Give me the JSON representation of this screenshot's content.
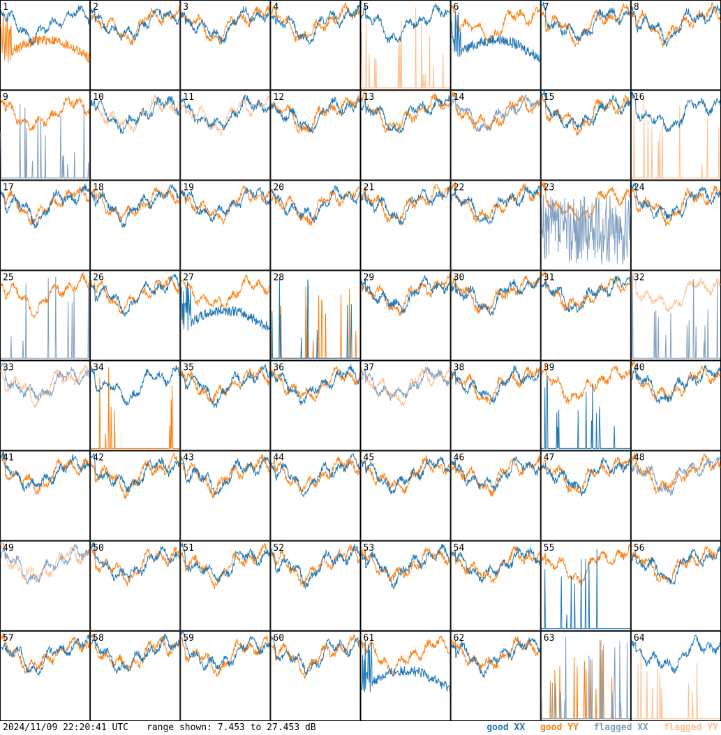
{
  "footer": {
    "timestamp": "2024/11/09 22:20:41 UTC",
    "range": "range shown: 7.453 to 27.453 dB"
  },
  "legend": [
    {
      "label": "good XX",
      "color": "#1f77b4"
    },
    {
      "label": "good YY",
      "color": "#ff7f0e"
    },
    {
      "label": "flagged XX",
      "color": "#7f9fbf"
    },
    {
      "label": "flagged YY",
      "color": "#ffbf8f"
    }
  ],
  "chart_data": {
    "type": "line",
    "xlabel": "",
    "ylabel": "",
    "ylim": [
      7.453,
      27.453
    ],
    "grid": {
      "rows": 8,
      "cols": 8
    },
    "panels": [
      {
        "id": "1",
        "xx": "good",
        "yy": "good",
        "xx_shape": "normal",
        "yy_shape": "hump"
      },
      {
        "id": "2",
        "xx": "good",
        "yy": "good",
        "xx_shape": "normal",
        "yy_shape": "normal"
      },
      {
        "id": "3",
        "xx": "good",
        "yy": "good",
        "xx_shape": "normal",
        "yy_shape": "normal"
      },
      {
        "id": "4",
        "xx": "good",
        "yy": "good",
        "xx_shape": "normal",
        "yy_shape": "normal"
      },
      {
        "id": "5",
        "xx": "good",
        "yy": "flagged",
        "xx_shape": "normal",
        "yy_shape": "spikes"
      },
      {
        "id": "6",
        "xx": "good",
        "yy": "good",
        "xx_shape": "hump",
        "yy_shape": "normal"
      },
      {
        "id": "7",
        "xx": "good",
        "yy": "good",
        "xx_shape": "normal",
        "yy_shape": "normal"
      },
      {
        "id": "8",
        "xx": "good",
        "yy": "good",
        "xx_shape": "normal",
        "yy_shape": "normal"
      },
      {
        "id": "9",
        "xx": "flagged",
        "yy": "good",
        "xx_shape": "spikes",
        "yy_shape": "normal"
      },
      {
        "id": "10",
        "xx": "good",
        "yy": "flagged",
        "xx_shape": "normal",
        "yy_shape": "normal"
      },
      {
        "id": "11",
        "xx": "good",
        "yy": "flagged",
        "xx_shape": "normal",
        "yy_shape": "normal"
      },
      {
        "id": "12",
        "xx": "good",
        "yy": "good",
        "xx_shape": "normal",
        "yy_shape": "normal"
      },
      {
        "id": "13",
        "xx": "good",
        "yy": "good",
        "xx_shape": "normal",
        "yy_shape": "normal"
      },
      {
        "id": "14",
        "xx": "flagged",
        "yy": "good",
        "xx_shape": "normal",
        "yy_shape": "normal"
      },
      {
        "id": "15",
        "xx": "good",
        "yy": "good",
        "xx_shape": "normal",
        "yy_shape": "normal"
      },
      {
        "id": "16",
        "xx": "good",
        "yy": "flagged",
        "xx_shape": "normal",
        "yy_shape": "spikes"
      },
      {
        "id": "17",
        "xx": "good",
        "yy": "good",
        "xx_shape": "normal",
        "yy_shape": "normal"
      },
      {
        "id": "18",
        "xx": "good",
        "yy": "good",
        "xx_shape": "normal",
        "yy_shape": "normal"
      },
      {
        "id": "19",
        "xx": "good",
        "yy": "good",
        "xx_shape": "normal",
        "yy_shape": "normal"
      },
      {
        "id": "20",
        "xx": "good",
        "yy": "good",
        "xx_shape": "normal",
        "yy_shape": "normal"
      },
      {
        "id": "21",
        "xx": "good",
        "yy": "good",
        "xx_shape": "normal",
        "yy_shape": "normal"
      },
      {
        "id": "22",
        "xx": "good",
        "yy": "good",
        "xx_shape": "normal",
        "yy_shape": "normal"
      },
      {
        "id": "23",
        "xx": "flagged",
        "yy": "good",
        "xx_shape": "noisy",
        "yy_shape": "normal"
      },
      {
        "id": "24",
        "xx": "good",
        "yy": "good",
        "xx_shape": "normal",
        "yy_shape": "normal"
      },
      {
        "id": "25",
        "xx": "flagged",
        "yy": "good",
        "xx_shape": "spikes",
        "yy_shape": "normal"
      },
      {
        "id": "26",
        "xx": "good",
        "yy": "good",
        "xx_shape": "normal",
        "yy_shape": "normal"
      },
      {
        "id": "27",
        "xx": "good",
        "yy": "good",
        "xx_shape": "hump",
        "yy_shape": "normal"
      },
      {
        "id": "28",
        "xx": "good",
        "yy": "good",
        "xx_shape": "spikes",
        "yy_shape": "spikes"
      },
      {
        "id": "29",
        "xx": "good",
        "yy": "good",
        "xx_shape": "normal",
        "yy_shape": "normal"
      },
      {
        "id": "30",
        "xx": "good",
        "yy": "good",
        "xx_shape": "normal",
        "yy_shape": "normal"
      },
      {
        "id": "31",
        "xx": "good",
        "yy": "good",
        "xx_shape": "normal",
        "yy_shape": "normal"
      },
      {
        "id": "32",
        "xx": "flagged",
        "yy": "flagged",
        "xx_shape": "spikes",
        "yy_shape": "normal"
      },
      {
        "id": "33",
        "xx": "flagged",
        "yy": "flagged",
        "xx_shape": "normal",
        "yy_shape": "normal"
      },
      {
        "id": "34",
        "xx": "good",
        "yy": "good",
        "xx_shape": "normal",
        "yy_shape": "spikes"
      },
      {
        "id": "35",
        "xx": "good",
        "yy": "good",
        "xx_shape": "normal",
        "yy_shape": "normal"
      },
      {
        "id": "36",
        "xx": "good",
        "yy": "good",
        "xx_shape": "normal",
        "yy_shape": "normal"
      },
      {
        "id": "37",
        "xx": "flagged",
        "yy": "flagged",
        "xx_shape": "normal",
        "yy_shape": "normal"
      },
      {
        "id": "38",
        "xx": "good",
        "yy": "good",
        "xx_shape": "normal",
        "yy_shape": "normal"
      },
      {
        "id": "39",
        "xx": "good",
        "yy": "good",
        "xx_shape": "spikes",
        "yy_shape": "normal"
      },
      {
        "id": "40",
        "xx": "good",
        "yy": "good",
        "xx_shape": "normal",
        "yy_shape": "normal"
      },
      {
        "id": "41",
        "xx": "good",
        "yy": "good",
        "xx_shape": "normal",
        "yy_shape": "normal"
      },
      {
        "id": "42",
        "xx": "good",
        "yy": "good",
        "xx_shape": "normal",
        "yy_shape": "normal"
      },
      {
        "id": "43",
        "xx": "good",
        "yy": "good",
        "xx_shape": "normal",
        "yy_shape": "normal"
      },
      {
        "id": "44",
        "xx": "good",
        "yy": "good",
        "xx_shape": "normal",
        "yy_shape": "normal"
      },
      {
        "id": "45",
        "xx": "good",
        "yy": "good",
        "xx_shape": "normal",
        "yy_shape": "normal"
      },
      {
        "id": "46",
        "xx": "good",
        "yy": "good",
        "xx_shape": "normal",
        "yy_shape": "normal"
      },
      {
        "id": "47",
        "xx": "good",
        "yy": "good",
        "xx_shape": "normal",
        "yy_shape": "normal"
      },
      {
        "id": "48",
        "xx": "flagged",
        "yy": "good",
        "xx_shape": "normal",
        "yy_shape": "normal"
      },
      {
        "id": "49",
        "xx": "flagged",
        "yy": "flagged",
        "xx_shape": "normal",
        "yy_shape": "normal"
      },
      {
        "id": "50",
        "xx": "good",
        "yy": "good",
        "xx_shape": "normal",
        "yy_shape": "normal"
      },
      {
        "id": "51",
        "xx": "good",
        "yy": "good",
        "xx_shape": "normal",
        "yy_shape": "normal"
      },
      {
        "id": "52",
        "xx": "good",
        "yy": "good",
        "xx_shape": "normal",
        "yy_shape": "normal"
      },
      {
        "id": "53",
        "xx": "good",
        "yy": "good",
        "xx_shape": "normal",
        "yy_shape": "normal"
      },
      {
        "id": "54",
        "xx": "good",
        "yy": "good",
        "xx_shape": "normal",
        "yy_shape": "normal"
      },
      {
        "id": "55",
        "xx": "good",
        "yy": "good",
        "xx_shape": "spikes",
        "yy_shape": "normal"
      },
      {
        "id": "56",
        "xx": "good",
        "yy": "good",
        "xx_shape": "normal",
        "yy_shape": "normal"
      },
      {
        "id": "57",
        "xx": "good",
        "yy": "good",
        "xx_shape": "normal",
        "yy_shape": "normal"
      },
      {
        "id": "58",
        "xx": "good",
        "yy": "good",
        "xx_shape": "normal",
        "yy_shape": "normal"
      },
      {
        "id": "59",
        "xx": "good",
        "yy": "good",
        "xx_shape": "normal",
        "yy_shape": "normal"
      },
      {
        "id": "60",
        "xx": "good",
        "yy": "good",
        "xx_shape": "normal",
        "yy_shape": "normal"
      },
      {
        "id": "61",
        "xx": "good",
        "yy": "good",
        "xx_shape": "hump",
        "yy_shape": "normal"
      },
      {
        "id": "62",
        "xx": "good",
        "yy": "good",
        "xx_shape": "normal",
        "yy_shape": "normal"
      },
      {
        "id": "63",
        "xx": "flagged",
        "yy": "good",
        "xx_shape": "spikes",
        "yy_shape": "spikes"
      },
      {
        "id": "64",
        "xx": "good",
        "yy": "flagged",
        "xx_shape": "normal",
        "yy_shape": "spikes"
      }
    ]
  }
}
